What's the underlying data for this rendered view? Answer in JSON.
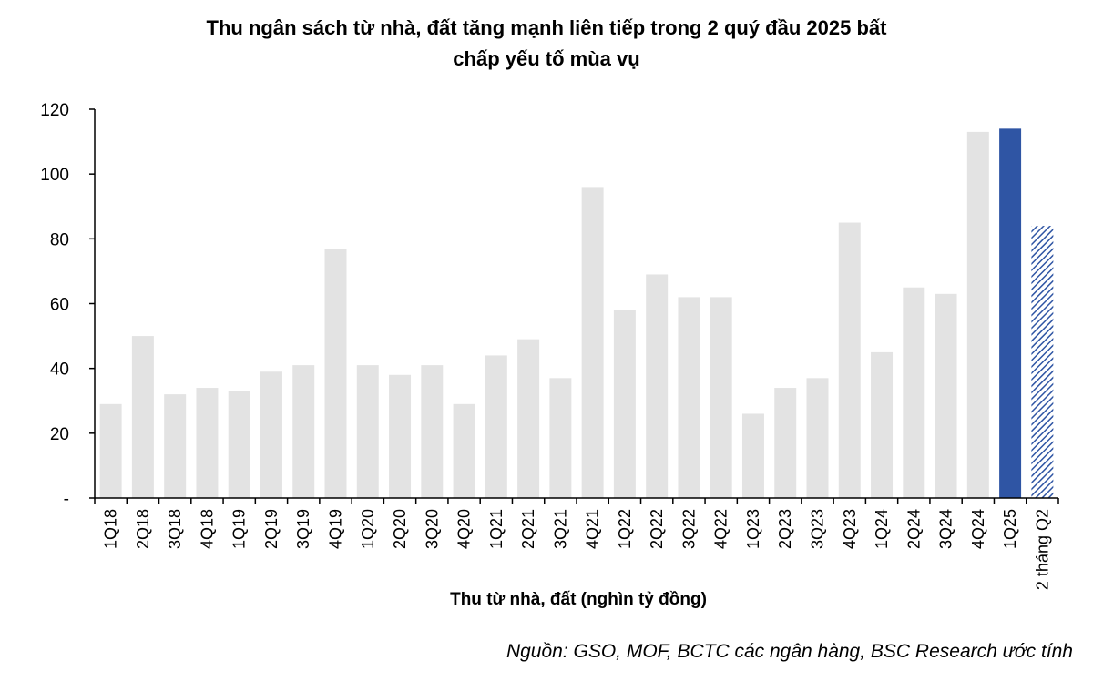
{
  "chart_data": {
    "type": "bar",
    "title_line1": "Thu ngân sách từ nhà, đất tăng mạnh liên tiếp trong 2 quý đầu 2025 bất",
    "title_line2": "chấp yếu tố mùa vụ",
    "xlabel": "Thu từ nhà, đất (nghìn tỷ đồng)",
    "ylabel": "",
    "ylim": [
      0,
      120
    ],
    "yticks": [
      0,
      20,
      40,
      60,
      80,
      100,
      120
    ],
    "ytick_labels": [
      "-",
      "20",
      "40",
      "60",
      "80",
      "100",
      "120"
    ],
    "categories": [
      "1Q18",
      "2Q18",
      "3Q18",
      "4Q18",
      "1Q19",
      "2Q19",
      "3Q19",
      "4Q19",
      "1Q20",
      "2Q20",
      "3Q20",
      "4Q20",
      "1Q21",
      "2Q21",
      "3Q21",
      "4Q21",
      "1Q22",
      "2Q22",
      "3Q22",
      "4Q22",
      "1Q23",
      "2Q23",
      "3Q23",
      "4Q23",
      "1Q24",
      "2Q24",
      "3Q24",
      "4Q24",
      "1Q25",
      "2 tháng Q2"
    ],
    "values": [
      29,
      50,
      32,
      34,
      33,
      39,
      41,
      77,
      41,
      38,
      41,
      29,
      44,
      49,
      37,
      96,
      58,
      69,
      62,
      62,
      26,
      34,
      37,
      85,
      45,
      65,
      63,
      113,
      114,
      84
    ],
    "grid": false,
    "legend": "none",
    "colors": {
      "default": "#e3e3e3",
      "highlight": "#2f55a4",
      "hatch": "#2f55a4"
    },
    "highlight_index": 28,
    "hatched_index": 29
  },
  "source": "Nguồn: GSO, MOF, BCTC các ngân hàng, BSC Research ước tính"
}
